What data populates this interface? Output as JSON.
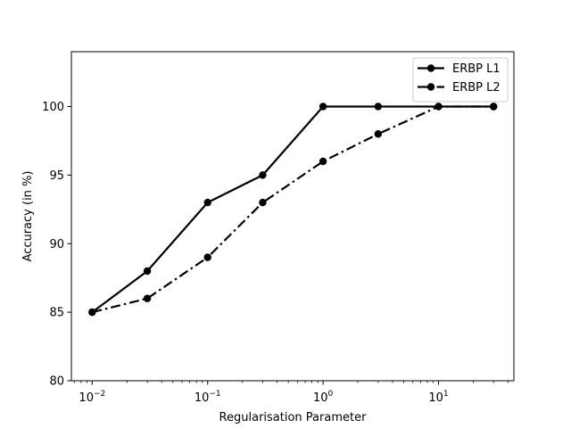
{
  "chart_data": {
    "type": "line",
    "title": "",
    "xlabel": "Regularisation Parameter",
    "ylabel": "Accuracy (in %)",
    "x_scale": "log",
    "x": [
      0.01,
      0.03,
      0.1,
      0.3,
      1,
      3,
      10,
      30
    ],
    "xlim": [
      0.0066,
      45
    ],
    "ylim": [
      80,
      104
    ],
    "x_ticks": [
      0.01,
      0.1,
      1,
      10
    ],
    "x_tick_labels": [
      {
        "base": "10",
        "exp": "−2"
      },
      {
        "base": "10",
        "exp": "−1"
      },
      {
        "base": "10",
        "exp": "0"
      },
      {
        "base": "10",
        "exp": "1"
      }
    ],
    "y_ticks": [
      80,
      85,
      90,
      95,
      100
    ],
    "grid": false,
    "legend_position": "top-right",
    "series": [
      {
        "name": "ERBP L1",
        "values": [
          85,
          88,
          93,
          95,
          100,
          100,
          100,
          100
        ],
        "color": "#000000",
        "line_style": "solid",
        "marker": "circle"
      },
      {
        "name": "ERBP L2",
        "values": [
          85,
          86,
          89,
          93,
          96,
          98,
          100,
          100
        ],
        "color": "#000000",
        "line_style": "dash-dot",
        "marker": "circle"
      }
    ]
  }
}
